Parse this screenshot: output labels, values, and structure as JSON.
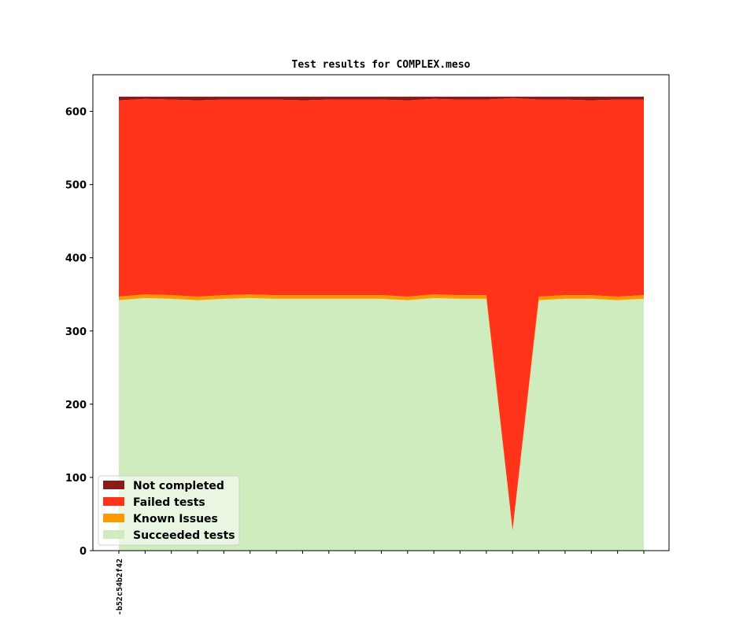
{
  "chart_data": {
    "type": "area",
    "title": "Test results for COMPLEX.meso",
    "xlabel": "",
    "ylabel": "",
    "ylim": [
      0,
      650
    ],
    "yticks": [
      0,
      100,
      200,
      300,
      400,
      500,
      600
    ],
    "x_count": 21,
    "xtick_labels": [
      "-b52c54b2f42",
      "",
      "",
      "",
      "",
      "",
      "",
      "",
      "",
      "",
      "",
      "",
      "",
      "",
      "",
      "",
      "",
      "",
      "",
      "",
      ""
    ],
    "stacked": true,
    "legend_position": "lower-left",
    "grid": false,
    "series": [
      {
        "name": "Succeeded tests",
        "color": "#cfecbe",
        "values": [
          342,
          345,
          344,
          342,
          344,
          345,
          344,
          344,
          344,
          344,
          344,
          342,
          345,
          344,
          344,
          28,
          342,
          344,
          344,
          342,
          344
        ]
      },
      {
        "name": "Known Issues",
        "color": "#ff9900",
        "values": [
          5,
          5,
          5,
          5,
          5,
          5,
          5,
          5,
          5,
          5,
          5,
          5,
          5,
          5,
          5,
          0,
          5,
          5,
          5,
          5,
          5
        ]
      },
      {
        "name": "Failed tests",
        "color": "#ff3319",
        "values": [
          268,
          267,
          267,
          268,
          267,
          266,
          267,
          266,
          267,
          267,
          267,
          268,
          267,
          267,
          267,
          590,
          269,
          267,
          266,
          269,
          267
        ]
      },
      {
        "name": "Not completed",
        "color": "#8b1a1a",
        "values": [
          5,
          3,
          4,
          5,
          4,
          4,
          4,
          5,
          4,
          4,
          4,
          5,
          3,
          4,
          4,
          2,
          4,
          4,
          5,
          4,
          4
        ]
      }
    ],
    "legend_order": [
      "Not completed",
      "Failed tests",
      "Known Issues",
      "Succeeded tests"
    ]
  }
}
